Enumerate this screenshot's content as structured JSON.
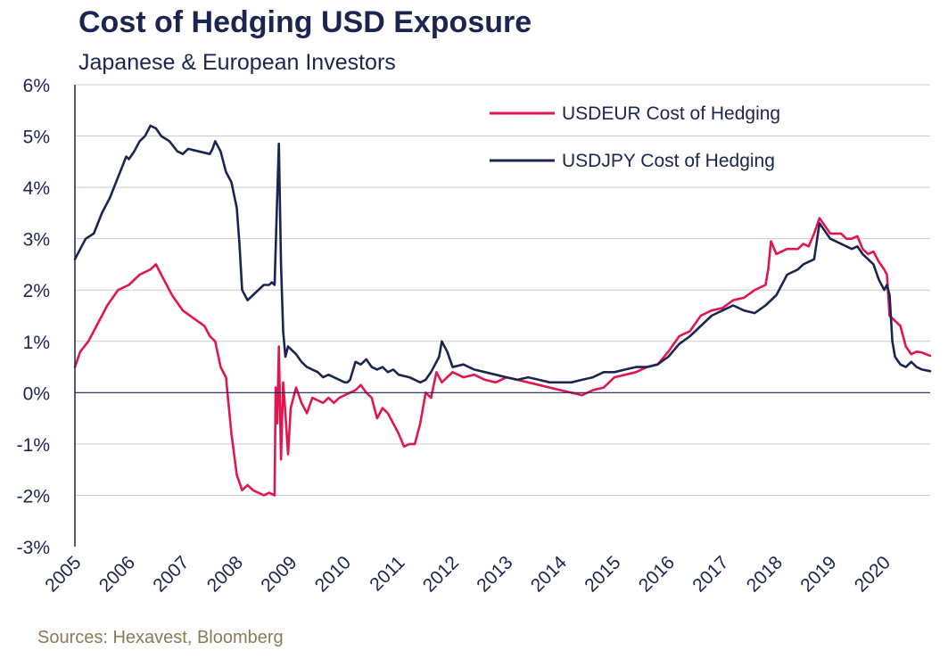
{
  "title": "Cost of Hedging USD Exposure",
  "subtitle": "Japanese & European Investors",
  "source": "Sources: Hexavest, Bloomberg",
  "colors": {
    "usdeur": "#e0174f",
    "usdjpy": "#1c2550",
    "grid": "#cccccc",
    "axis": "#1c2550"
  },
  "chart_data": {
    "type": "line",
    "title": "Cost of Hedging USD Exposure",
    "subtitle": "Japanese & European Investors",
    "xlabel": "",
    "ylabel": "",
    "xlim": [
      2005.0,
      2020.85
    ],
    "ylim": [
      -3,
      6
    ],
    "y_ticks": [
      -3,
      -2,
      -1,
      0,
      1,
      2,
      3,
      4,
      5,
      6
    ],
    "y_tick_labels": [
      "-3%",
      "-2%",
      "-1%",
      "0%",
      "1%",
      "2%",
      "3%",
      "4%",
      "5%",
      "6%"
    ],
    "x_ticks": [
      2005,
      2006,
      2007,
      2008,
      2009,
      2010,
      2011,
      2012,
      2013,
      2014,
      2015,
      2016,
      2017,
      2018,
      2019,
      2020
    ],
    "x_tick_labels": [
      "2005",
      "2006",
      "2007",
      "2008",
      "2009",
      "2010",
      "2011",
      "2012",
      "2013",
      "2014",
      "2015",
      "2016",
      "2017",
      "2018",
      "2019",
      "2020"
    ],
    "grid": "horizontal",
    "legend_position": "top-right",
    "series": [
      {
        "name": "USDEUR Cost of Hedging",
        "color": "#e0174f",
        "x": [
          2005.0,
          2005.1,
          2005.25,
          2005.4,
          2005.6,
          2005.8,
          2006.0,
          2006.2,
          2006.4,
          2006.5,
          2006.6,
          2006.8,
          2007.0,
          2007.2,
          2007.4,
          2007.5,
          2007.6,
          2007.7,
          2007.8,
          2007.9,
          2008.0,
          2008.1,
          2008.2,
          2008.3,
          2008.4,
          2008.5,
          2008.6,
          2008.7,
          2008.72,
          2008.75,
          2008.78,
          2008.82,
          2008.86,
          2008.9,
          2008.95,
          2009.0,
          2009.1,
          2009.2,
          2009.3,
          2009.4,
          2009.5,
          2009.6,
          2009.7,
          2009.8,
          2009.9,
          2010.0,
          2010.1,
          2010.2,
          2010.3,
          2010.4,
          2010.5,
          2010.6,
          2010.7,
          2010.8,
          2010.9,
          2011.0,
          2011.1,
          2011.2,
          2011.3,
          2011.4,
          2011.5,
          2011.6,
          2011.7,
          2011.8,
          2011.9,
          2012.0,
          2012.2,
          2012.4,
          2012.6,
          2012.8,
          2013.0,
          2013.2,
          2013.4,
          2013.6,
          2013.8,
          2014.0,
          2014.2,
          2014.4,
          2014.6,
          2014.8,
          2015.0,
          2015.2,
          2015.4,
          2015.6,
          2015.8,
          2016.0,
          2016.2,
          2016.4,
          2016.6,
          2016.8,
          2017.0,
          2017.2,
          2017.4,
          2017.6,
          2017.8,
          2017.85,
          2017.9,
          2018.0,
          2018.2,
          2018.4,
          2018.5,
          2018.6,
          2018.7,
          2018.8,
          2019.0,
          2019.2,
          2019.3,
          2019.4,
          2019.5,
          2019.6,
          2019.7,
          2019.8,
          2019.9,
          2020.0,
          2020.05,
          2020.1,
          2020.2,
          2020.3,
          2020.4,
          2020.5,
          2020.6,
          2020.7,
          2020.85
        ],
        "values": [
          0.5,
          0.8,
          1.0,
          1.3,
          1.7,
          2.0,
          2.1,
          2.3,
          2.4,
          2.5,
          2.3,
          1.9,
          1.6,
          1.45,
          1.3,
          1.1,
          1.0,
          0.5,
          0.3,
          -0.8,
          -1.6,
          -1.9,
          -1.8,
          -1.9,
          -1.95,
          -2.0,
          -1.95,
          -2.0,
          0.1,
          -0.6,
          0.9,
          -1.3,
          0.2,
          -0.4,
          -1.2,
          -0.3,
          0.1,
          -0.2,
          -0.4,
          -0.1,
          -0.15,
          -0.2,
          -0.1,
          -0.2,
          -0.1,
          -0.05,
          0.0,
          0.05,
          0.15,
          0.0,
          -0.1,
          -0.5,
          -0.3,
          -0.4,
          -0.6,
          -0.8,
          -1.05,
          -1.0,
          -1.0,
          -0.6,
          0.0,
          -0.1,
          0.4,
          0.2,
          0.3,
          0.4,
          0.3,
          0.35,
          0.25,
          0.2,
          0.3,
          0.25,
          0.2,
          0.15,
          0.1,
          0.05,
          0.0,
          -0.05,
          0.05,
          0.1,
          0.3,
          0.35,
          0.4,
          0.5,
          0.55,
          0.8,
          1.1,
          1.2,
          1.5,
          1.6,
          1.65,
          1.8,
          1.85,
          2.0,
          2.1,
          2.4,
          2.95,
          2.7,
          2.8,
          2.8,
          2.9,
          2.85,
          3.1,
          3.4,
          3.1,
          3.1,
          3.0,
          3.0,
          3.05,
          2.8,
          2.7,
          2.75,
          2.55,
          2.4,
          2.3,
          1.5,
          1.4,
          1.3,
          0.9,
          0.75,
          0.8,
          0.78,
          0.72
        ]
      },
      {
        "name": "USDJPY Cost of Hedging",
        "color": "#1c2550",
        "x": [
          2005.0,
          2005.1,
          2005.2,
          2005.35,
          2005.5,
          2005.65,
          2005.8,
          2005.95,
          2006.0,
          2006.1,
          2006.2,
          2006.3,
          2006.4,
          2006.5,
          2006.6,
          2006.75,
          2006.9,
          2007.0,
          2007.1,
          2007.3,
          2007.5,
          2007.55,
          2007.6,
          2007.7,
          2007.75,
          2007.8,
          2007.9,
          2008.0,
          2008.05,
          2008.1,
          2008.2,
          2008.3,
          2008.4,
          2008.5,
          2008.6,
          2008.65,
          2008.7,
          2008.74,
          2008.78,
          2008.82,
          2008.86,
          2008.9,
          2008.95,
          2009.0,
          2009.1,
          2009.2,
          2009.3,
          2009.4,
          2009.5,
          2009.6,
          2009.7,
          2009.8,
          2009.9,
          2010.0,
          2010.05,
          2010.1,
          2010.2,
          2010.3,
          2010.4,
          2010.5,
          2010.6,
          2010.7,
          2010.8,
          2010.9,
          2011.0,
          2011.2,
          2011.4,
          2011.5,
          2011.6,
          2011.7,
          2011.75,
          2011.8,
          2011.9,
          2012.0,
          2012.2,
          2012.4,
          2012.6,
          2012.8,
          2013.0,
          2013.2,
          2013.4,
          2013.6,
          2013.8,
          2014.0,
          2014.2,
          2014.4,
          2014.6,
          2014.8,
          2015.0,
          2015.2,
          2015.4,
          2015.6,
          2015.8,
          2016.0,
          2016.2,
          2016.4,
          2016.6,
          2016.8,
          2017.0,
          2017.2,
          2017.4,
          2017.6,
          2017.8,
          2018.0,
          2018.2,
          2018.4,
          2018.5,
          2018.6,
          2018.7,
          2018.8,
          2019.0,
          2019.2,
          2019.3,
          2019.4,
          2019.5,
          2019.6,
          2019.7,
          2019.8,
          2019.9,
          2020.0,
          2020.05,
          2020.1,
          2020.15,
          2020.2,
          2020.3,
          2020.4,
          2020.5,
          2020.6,
          2020.7,
          2020.85
        ],
        "values": [
          2.6,
          2.8,
          3.0,
          3.1,
          3.5,
          3.8,
          4.2,
          4.6,
          4.55,
          4.7,
          4.9,
          5.0,
          5.2,
          5.15,
          5.0,
          4.9,
          4.7,
          4.65,
          4.75,
          4.7,
          4.65,
          4.75,
          4.9,
          4.7,
          4.5,
          4.3,
          4.1,
          3.6,
          2.9,
          2.0,
          1.8,
          1.9,
          2.0,
          2.1,
          2.1,
          2.15,
          2.1,
          3.5,
          4.85,
          2.5,
          1.2,
          0.7,
          0.9,
          0.85,
          0.75,
          0.6,
          0.5,
          0.45,
          0.4,
          0.3,
          0.35,
          0.3,
          0.25,
          0.2,
          0.2,
          0.25,
          0.6,
          0.55,
          0.65,
          0.5,
          0.45,
          0.5,
          0.4,
          0.45,
          0.35,
          0.3,
          0.2,
          0.25,
          0.4,
          0.6,
          0.7,
          1.0,
          0.8,
          0.5,
          0.55,
          0.45,
          0.4,
          0.35,
          0.3,
          0.25,
          0.3,
          0.25,
          0.2,
          0.2,
          0.2,
          0.25,
          0.3,
          0.4,
          0.4,
          0.45,
          0.5,
          0.5,
          0.55,
          0.7,
          0.95,
          1.1,
          1.3,
          1.5,
          1.6,
          1.7,
          1.6,
          1.55,
          1.7,
          1.9,
          2.3,
          2.4,
          2.5,
          2.55,
          2.6,
          3.3,
          3.0,
          2.9,
          2.85,
          2.8,
          2.85,
          2.7,
          2.6,
          2.5,
          2.2,
          2.0,
          2.1,
          1.9,
          1.0,
          0.7,
          0.55,
          0.5,
          0.6,
          0.5,
          0.45,
          0.42
        ]
      }
    ]
  }
}
